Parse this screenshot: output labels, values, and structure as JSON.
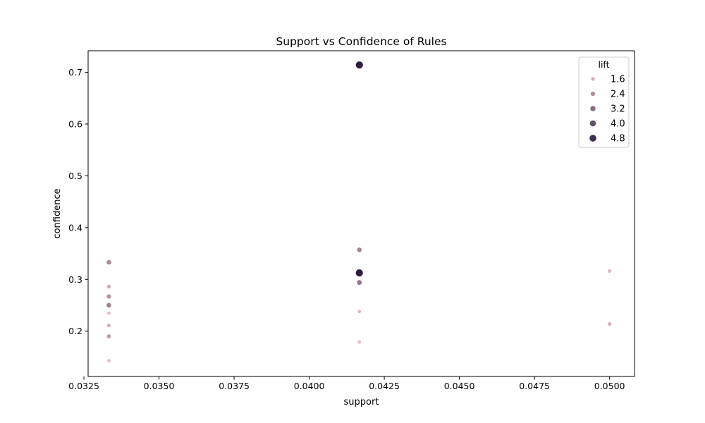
{
  "chart_data": {
    "type": "scatter",
    "title": "Support vs Confidence of Rules",
    "xlabel": "support",
    "ylabel": "confidence",
    "xlim": [
      0.03264,
      0.05083
    ],
    "ylim": [
      0.1125,
      0.7415
    ],
    "x_ticks": [
      0.0325,
      0.035,
      0.0375,
      0.04,
      0.0425,
      0.045,
      0.0475,
      0.05
    ],
    "x_tick_labels": [
      "0.0325",
      "0.0350",
      "0.0375",
      "0.0400",
      "0.0425",
      "0.0450",
      "0.0475",
      "0.0500"
    ],
    "y_ticks": [
      0.2,
      0.3,
      0.4,
      0.5,
      0.6,
      0.7
    ],
    "y_tick_labels": [
      "0.2",
      "0.3",
      "0.4",
      "0.5",
      "0.6",
      "0.7"
    ],
    "grid": false,
    "hue_variable": "lift",
    "size_variable": "lift",
    "lift_range": [
      1.0,
      5.2
    ],
    "color_low": "#e8c8cf",
    "color_high": "#2d1e3e",
    "legend": {
      "title": "lift",
      "placement": "top-right",
      "entries": [
        {
          "label": "1.6",
          "lift": 1.6
        },
        {
          "label": "2.4",
          "lift": 2.4
        },
        {
          "label": "3.2",
          "lift": 3.2
        },
        {
          "label": "4.0",
          "lift": 4.0
        },
        {
          "label": "4.8",
          "lift": 4.8
        }
      ]
    },
    "points": [
      {
        "x": 0.04167,
        "y": 0.714,
        "lift": 5.2
      },
      {
        "x": 0.04167,
        "y": 0.357,
        "lift": 2.6
      },
      {
        "x": 0.04167,
        "y": 0.3125,
        "lift": 5.2
      },
      {
        "x": 0.04167,
        "y": 0.294,
        "lift": 2.9
      },
      {
        "x": 0.04167,
        "y": 0.238,
        "lift": 1.3
      },
      {
        "x": 0.04167,
        "y": 0.179,
        "lift": 1.3
      },
      {
        "x": 0.03333,
        "y": 0.333,
        "lift": 2.5
      },
      {
        "x": 0.03333,
        "y": 0.286,
        "lift": 1.7
      },
      {
        "x": 0.03333,
        "y": 0.267,
        "lift": 2.3
      },
      {
        "x": 0.03333,
        "y": 0.25,
        "lift": 2.7
      },
      {
        "x": 0.03333,
        "y": 0.235,
        "lift": 1.3
      },
      {
        "x": 0.03333,
        "y": 0.211,
        "lift": 1.6
      },
      {
        "x": 0.03333,
        "y": 0.19,
        "lift": 2.0
      },
      {
        "x": 0.03333,
        "y": 0.143,
        "lift": 1.2
      },
      {
        "x": 0.05,
        "y": 0.316,
        "lift": 1.4
      },
      {
        "x": 0.05,
        "y": 0.214,
        "lift": 1.6
      }
    ]
  }
}
